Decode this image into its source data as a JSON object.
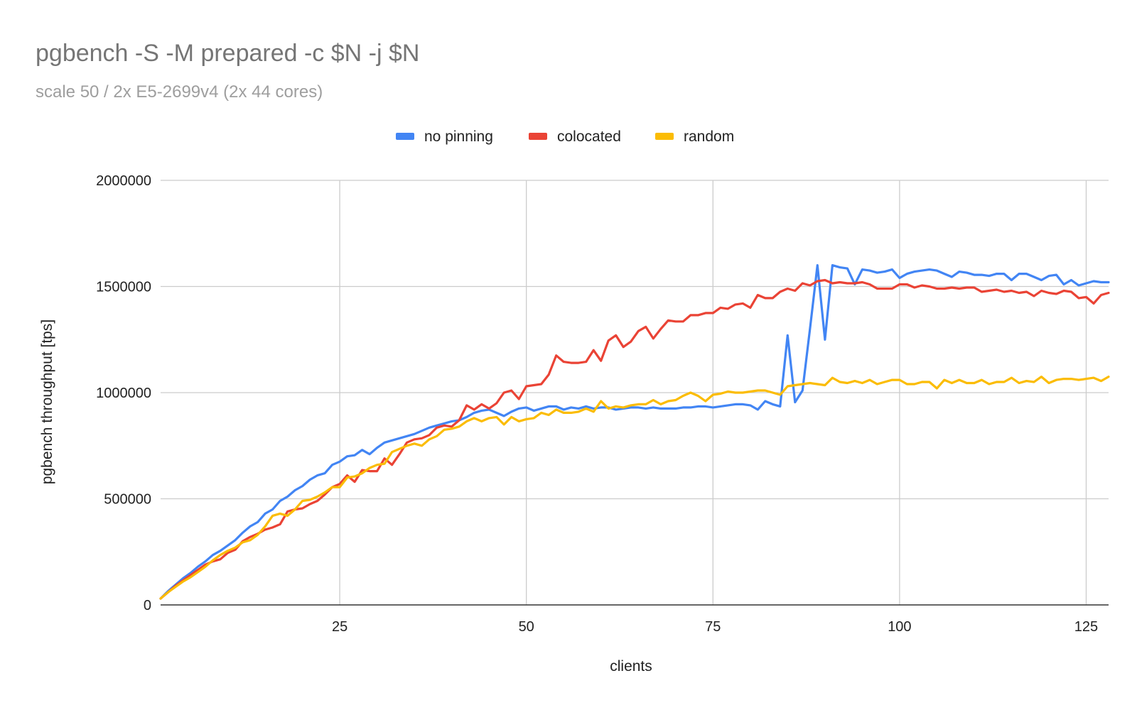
{
  "chart_data": {
    "type": "line",
    "title": "pgbench -S -M prepared -c $N -j $N",
    "subtitle": "scale 50 / 2x E5-2699v4 (2x 44 cores)",
    "xlabel": "clients",
    "ylabel": "pgbench throughput [tps]",
    "xlim": [
      1,
      128
    ],
    "ylim": [
      0,
      2000000
    ],
    "x_ticks": [
      25,
      50,
      75,
      100,
      125
    ],
    "y_ticks": [
      0,
      500000,
      1000000,
      1500000,
      2000000
    ],
    "grid": true,
    "legend_position": "top",
    "x_start": 1,
    "series": [
      {
        "name": "no pinning",
        "color": "#4285F4",
        "values": [
          30000,
          65000,
          95000,
          125000,
          150000,
          180000,
          205000,
          235000,
          255000,
          280000,
          305000,
          340000,
          370000,
          390000,
          430000,
          450000,
          490000,
          510000,
          540000,
          560000,
          590000,
          610000,
          620000,
          660000,
          675000,
          700000,
          705000,
          730000,
          710000,
          740000,
          765000,
          775000,
          785000,
          795000,
          805000,
          820000,
          835000,
          845000,
          855000,
          865000,
          870000,
          885000,
          905000,
          915000,
          920000,
          905000,
          890000,
          910000,
          925000,
          930000,
          915000,
          925000,
          935000,
          935000,
          920000,
          930000,
          925000,
          935000,
          925000,
          930000,
          930000,
          920000,
          925000,
          930000,
          930000,
          925000,
          930000,
          925000,
          925000,
          925000,
          930000,
          930000,
          935000,
          935000,
          930000,
          935000,
          940000,
          945000,
          945000,
          940000,
          920000,
          960000,
          945000,
          935000,
          1270000,
          955000,
          1010000,
          1300000,
          1600000,
          1250000,
          1600000,
          1590000,
          1585000,
          1510000,
          1580000,
          1575000,
          1565000,
          1570000,
          1580000,
          1540000,
          1560000,
          1570000,
          1575000,
          1580000,
          1575000,
          1560000,
          1545000,
          1570000,
          1565000,
          1555000,
          1555000,
          1550000,
          1560000,
          1560000,
          1530000,
          1560000,
          1560000,
          1545000,
          1530000,
          1550000,
          1555000,
          1510000,
          1530000,
          1505000,
          1515000,
          1525000,
          1520000,
          1520000
        ]
      },
      {
        "name": "colocated",
        "color": "#EA4335",
        "values": [
          30000,
          60000,
          90000,
          115000,
          140000,
          165000,
          190000,
          205000,
          215000,
          245000,
          260000,
          300000,
          320000,
          335000,
          355000,
          365000,
          380000,
          440000,
          450000,
          455000,
          475000,
          490000,
          520000,
          555000,
          570000,
          610000,
          580000,
          635000,
          630000,
          630000,
          690000,
          660000,
          710000,
          765000,
          780000,
          785000,
          800000,
          835000,
          845000,
          840000,
          870000,
          940000,
          920000,
          945000,
          925000,
          950000,
          1000000,
          1010000,
          970000,
          1030000,
          1035000,
          1040000,
          1085000,
          1175000,
          1145000,
          1140000,
          1140000,
          1145000,
          1200000,
          1150000,
          1245000,
          1270000,
          1215000,
          1240000,
          1290000,
          1310000,
          1255000,
          1300000,
          1340000,
          1335000,
          1335000,
          1365000,
          1365000,
          1375000,
          1375000,
          1400000,
          1395000,
          1415000,
          1420000,
          1400000,
          1460000,
          1445000,
          1445000,
          1475000,
          1490000,
          1480000,
          1515000,
          1505000,
          1525000,
          1530000,
          1515000,
          1520000,
          1515000,
          1515000,
          1520000,
          1510000,
          1490000,
          1490000,
          1490000,
          1510000,
          1510000,
          1495000,
          1505000,
          1500000,
          1490000,
          1490000,
          1495000,
          1490000,
          1495000,
          1495000,
          1475000,
          1480000,
          1485000,
          1475000,
          1480000,
          1470000,
          1475000,
          1455000,
          1480000,
          1470000,
          1465000,
          1480000,
          1475000,
          1445000,
          1450000,
          1420000,
          1460000,
          1470000
        ]
      },
      {
        "name": "random",
        "color": "#FBBC04",
        "values": [
          30000,
          60000,
          85000,
          110000,
          130000,
          155000,
          180000,
          210000,
          235000,
          255000,
          270000,
          295000,
          305000,
          330000,
          370000,
          420000,
          430000,
          420000,
          450000,
          490000,
          495000,
          510000,
          530000,
          555000,
          555000,
          600000,
          605000,
          620000,
          645000,
          660000,
          665000,
          720000,
          735000,
          750000,
          760000,
          750000,
          780000,
          795000,
          825000,
          830000,
          840000,
          865000,
          880000,
          865000,
          880000,
          885000,
          850000,
          885000,
          865000,
          875000,
          880000,
          905000,
          895000,
          920000,
          905000,
          905000,
          910000,
          925000,
          910000,
          960000,
          925000,
          935000,
          930000,
          940000,
          945000,
          945000,
          965000,
          945000,
          960000,
          965000,
          985000,
          1000000,
          985000,
          960000,
          990000,
          995000,
          1005000,
          1000000,
          1000000,
          1005000,
          1010000,
          1010000,
          1000000,
          990000,
          1030000,
          1035000,
          1040000,
          1045000,
          1040000,
          1035000,
          1070000,
          1050000,
          1045000,
          1055000,
          1045000,
          1060000,
          1040000,
          1050000,
          1060000,
          1060000,
          1040000,
          1040000,
          1050000,
          1050000,
          1020000,
          1060000,
          1045000,
          1060000,
          1045000,
          1045000,
          1060000,
          1040000,
          1050000,
          1050000,
          1070000,
          1045000,
          1055000,
          1050000,
          1075000,
          1045000,
          1060000,
          1065000,
          1065000,
          1060000,
          1065000,
          1070000,
          1055000,
          1075000
        ]
      }
    ]
  }
}
